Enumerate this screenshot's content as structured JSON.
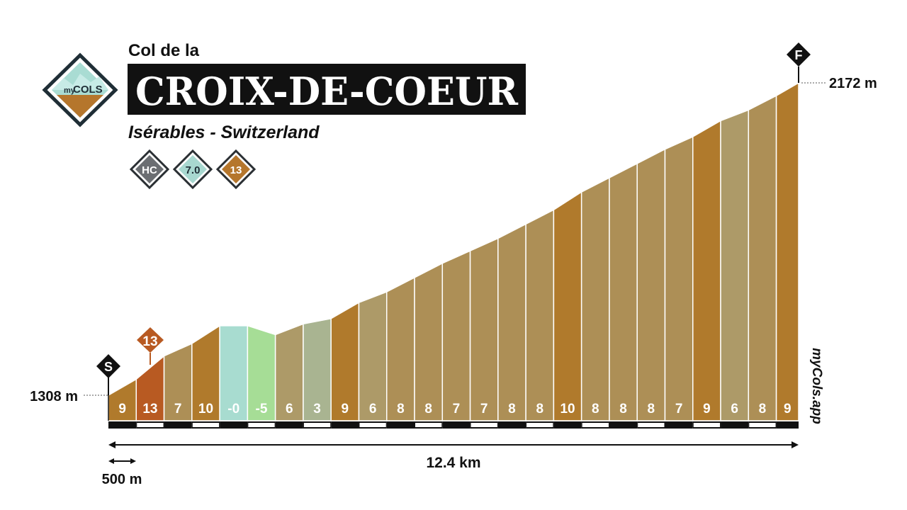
{
  "header": {
    "prefix": "Col de la",
    "name": "CROIX-DE-COEUR",
    "location": "Isérables - Switzerland"
  },
  "logo": {
    "text_my": "my",
    "text_cols": "COLS",
    "icon": "mountain-diamond-icon"
  },
  "badges": [
    {
      "label": "HC",
      "color": "#6b6e72"
    },
    {
      "label": "7.0",
      "color": "#a8d8d0"
    },
    {
      "label": "13",
      "color": "#b5762c"
    }
  ],
  "markers": {
    "start": "S",
    "finish": "F",
    "max_gradient": "13"
  },
  "labels": {
    "start_elevation": "1308 m",
    "end_elevation": "2172 m",
    "distance": "12.4 km",
    "scale": "500 m",
    "watermark": "myCols.app"
  },
  "chart_data": {
    "type": "area",
    "title": "CROIX-DE-COEUR",
    "distance_km": 12.4,
    "segment_length_m": 500,
    "elevation_range_m": [
      1308,
      2172
    ],
    "segments": [
      {
        "gradient": "9",
        "color": "#b07a2c"
      },
      {
        "gradient": "13",
        "color": "#b85a22"
      },
      {
        "gradient": "7",
        "color": "#ad8f56"
      },
      {
        "gradient": "10",
        "color": "#b07a2c"
      },
      {
        "gradient": "-0",
        "color": "#a8dcd0"
      },
      {
        "gradient": "-5",
        "color": "#a6dd96"
      },
      {
        "gradient": "6",
        "color": "#ad9a68"
      },
      {
        "gradient": "3",
        "color": "#a9b491"
      },
      {
        "gradient": "9",
        "color": "#b07a2c"
      },
      {
        "gradient": "6",
        "color": "#ad9a68"
      },
      {
        "gradient": "8",
        "color": "#ad8f56"
      },
      {
        "gradient": "8",
        "color": "#ad8f56"
      },
      {
        "gradient": "7",
        "color": "#ad8f56"
      },
      {
        "gradient": "7",
        "color": "#ad8f56"
      },
      {
        "gradient": "8",
        "color": "#ad8f56"
      },
      {
        "gradient": "8",
        "color": "#ad8f56"
      },
      {
        "gradient": "10",
        "color": "#b07a2c"
      },
      {
        "gradient": "8",
        "color": "#ad8f56"
      },
      {
        "gradient": "8",
        "color": "#ad8f56"
      },
      {
        "gradient": "8",
        "color": "#ad8f56"
      },
      {
        "gradient": "7",
        "color": "#ad8f56"
      },
      {
        "gradient": "9",
        "color": "#b07a2c"
      },
      {
        "gradient": "6",
        "color": "#ad9a68"
      },
      {
        "gradient": "8",
        "color": "#ad8f56"
      },
      {
        "gradient": "9",
        "color": "#b07a2c"
      }
    ]
  }
}
